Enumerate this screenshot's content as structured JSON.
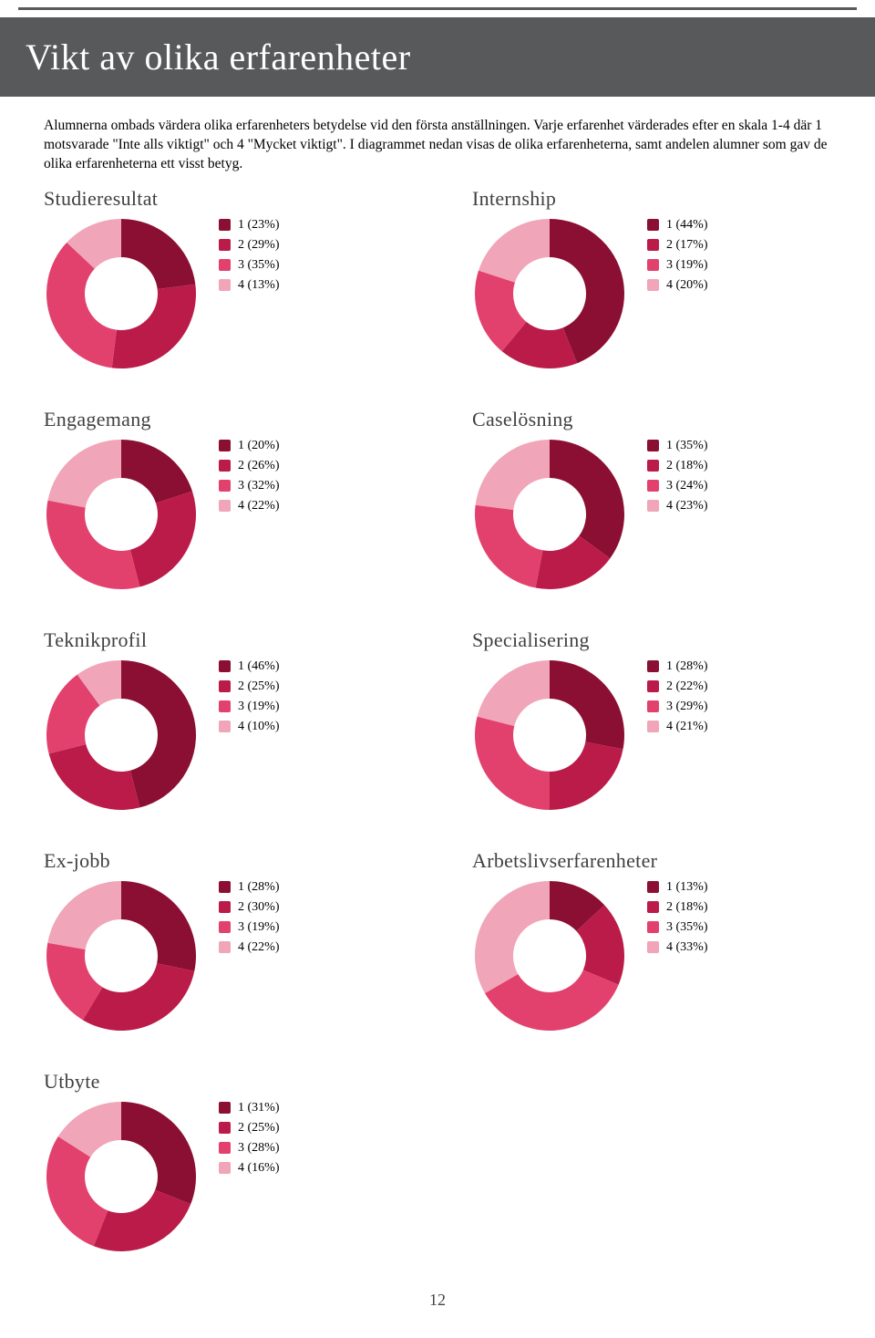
{
  "page_number": "12",
  "header_title": "Vikt av olika erfarenheter",
  "intro_text": "Alumnerna ombads värdera olika erfarenheters betydelse vid den första anställningen. Varje erfarenhet värderades efter en skala 1-4 där 1 motsvarade \"Inte alls viktigt\" och 4 \"Mycket viktigt\". I diagrammet nedan visas de olika erfarenheterna, samt andelen alumner som gav de olika erfarenheterna ett visst betyg.",
  "chart_style": {
    "type": "donut",
    "donut_outer_radius": 82,
    "donut_inner_radius": 40,
    "colors": [
      "#8a0f33",
      "#bb1b48",
      "#e2416d",
      "#f0a5b8"
    ],
    "legend_swatch_size": 13,
    "legend_fontsize": 14,
    "title_fontsize": 22,
    "background": "#ffffff"
  },
  "charts": [
    {
      "title": "Studieresultat",
      "values": [
        23,
        29,
        35,
        13
      ],
      "labels": [
        "1 (23%)",
        "2 (29%)",
        "3 (35%)",
        "4 (13%)"
      ]
    },
    {
      "title": "Internship",
      "values": [
        44,
        17,
        19,
        20
      ],
      "labels": [
        "1 (44%)",
        "2 (17%)",
        "3 (19%)",
        "4 (20%)"
      ]
    },
    {
      "title": "Engagemang",
      "values": [
        20,
        26,
        32,
        22
      ],
      "labels": [
        "1 (20%)",
        "2 (26%)",
        "3 (32%)",
        "4 (22%)"
      ]
    },
    {
      "title": "Caselösning",
      "values": [
        35,
        18,
        24,
        23
      ],
      "labels": [
        "1 (35%)",
        "2 (18%)",
        "3 (24%)",
        "4 (23%)"
      ]
    },
    {
      "title": "Teknikprofil",
      "values": [
        46,
        25,
        19,
        10
      ],
      "labels": [
        "1 (46%)",
        "2 (25%)",
        "3 (19%)",
        "4 (10%)"
      ]
    },
    {
      "title": "Specialisering",
      "values": [
        28,
        22,
        29,
        21
      ],
      "labels": [
        "1 (28%)",
        "2 (22%)",
        "3 (29%)",
        "4 (21%)"
      ]
    },
    {
      "title": "Ex-jobb",
      "values": [
        28,
        30,
        19,
        22
      ],
      "labels": [
        "1 (28%)",
        "2 (30%)",
        "3 (19%)",
        "4 (22%)"
      ]
    },
    {
      "title": "Arbetslivserfarenheter",
      "values": [
        13,
        18,
        35,
        33
      ],
      "labels": [
        "1 (13%)",
        "2 (18%)",
        "3 (35%)",
        "4 (33%)"
      ]
    },
    {
      "title": "Utbyte",
      "values": [
        31,
        25,
        28,
        16
      ],
      "labels": [
        "1 (31%)",
        "2 (25%)",
        "3 (28%)",
        "4 (16%)"
      ]
    }
  ]
}
